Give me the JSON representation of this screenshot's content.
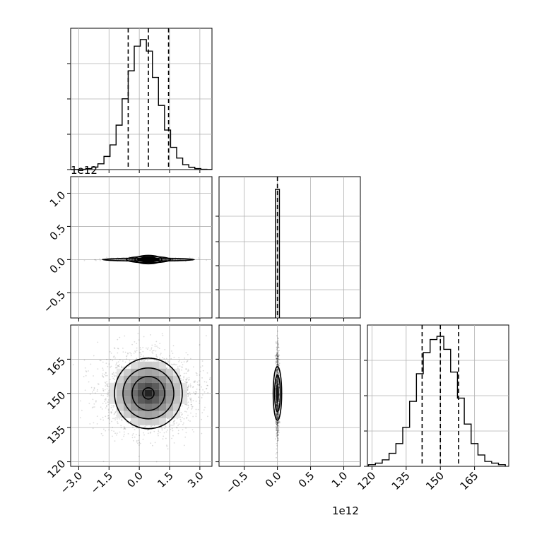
{
  "figure": {
    "type": "corner_plot",
    "x_offset_label": "1e12",
    "y_offset_label": "1e12"
  },
  "chart_data": [
    {
      "panel": "hist-param1",
      "type": "bar",
      "x": [
        -3.4,
        -3.1,
        -2.8,
        -2.5,
        -2.2,
        -1.9,
        -1.6,
        -1.3,
        -1.0,
        -0.7,
        -0.4,
        -0.1,
        0.2,
        0.5,
        0.8,
        1.1,
        1.4,
        1.7,
        2.0,
        2.3,
        2.6,
        2.9,
        3.2,
        3.5
      ],
      "values": [
        0,
        1,
        2,
        6,
        15,
        35,
        80,
        150,
        270,
        430,
        600,
        750,
        790,
        720,
        560,
        390,
        240,
        135,
        70,
        30,
        14,
        6,
        2,
        1
      ],
      "quantiles": [
        -0.55,
        0.45,
        1.45
      ],
      "xlim": [
        -3.4,
        3.6
      ],
      "xticks": [
        -3.0,
        -1.5,
        0.0,
        1.5,
        3.0
      ]
    },
    {
      "panel": "hist-param2",
      "type": "bar",
      "x": [
        -0.02,
        0.0
      ],
      "values": [
        1,
        1
      ],
      "quantiles": [
        0.0
      ],
      "xlim": [
        -0.88,
        1.25
      ],
      "xticks": [
        -0.5,
        0.0,
        0.5,
        1.0
      ],
      "offset": "1e12"
    },
    {
      "panel": "hist-param3",
      "type": "bar",
      "x": [
        120,
        123,
        126,
        129,
        132,
        135,
        138,
        141,
        144,
        147,
        150,
        153,
        156,
        159,
        162,
        165,
        168,
        171,
        174,
        177
      ],
      "values": [
        1,
        2,
        4,
        8,
        14,
        24,
        40,
        57,
        70,
        78,
        80,
        72,
        58,
        42,
        26,
        14,
        7,
        3,
        2,
        1
      ],
      "quantiles": [
        142,
        150,
        158
      ],
      "xlim": [
        118,
        180
      ],
      "xticks": [
        120,
        135,
        150,
        165
      ]
    },
    {
      "panel": "scatter-param1-param2",
      "type": "scatter",
      "x_center": 0.45,
      "y_center": 0.0,
      "xlim": [
        -3.4,
        3.6
      ],
      "ylim": [
        -0.88,
        1.25
      ],
      "yticks": [
        -0.5,
        0.0,
        0.5,
        1.0
      ],
      "offset": "1e12"
    },
    {
      "panel": "scatter-param1-param3",
      "type": "scatter",
      "x_center": 0.45,
      "y_center": 150,
      "xlim": [
        -3.4,
        3.6
      ],
      "ylim": [
        118,
        180
      ],
      "xticks": [
        -3.0,
        -1.5,
        0.0,
        1.5,
        3.0
      ],
      "yticks": [
        120,
        135,
        150,
        165
      ]
    },
    {
      "panel": "scatter-param2-param3",
      "type": "scatter",
      "x_center": 0.0,
      "y_center": 150,
      "xlim": [
        -0.88,
        1.25
      ],
      "ylim": [
        118,
        180
      ],
      "xticks": [
        -0.5,
        0.0,
        0.5,
        1.0
      ],
      "offset": "1e12"
    }
  ],
  "tick_labels": {
    "p1": [
      "−3.0",
      "−1.5",
      "0.0",
      "1.5",
      "3.0"
    ],
    "p2": [
      "−0.5",
      "0.0",
      "0.5",
      "1.0"
    ],
    "p3": [
      "120",
      "135",
      "150",
      "165"
    ]
  }
}
